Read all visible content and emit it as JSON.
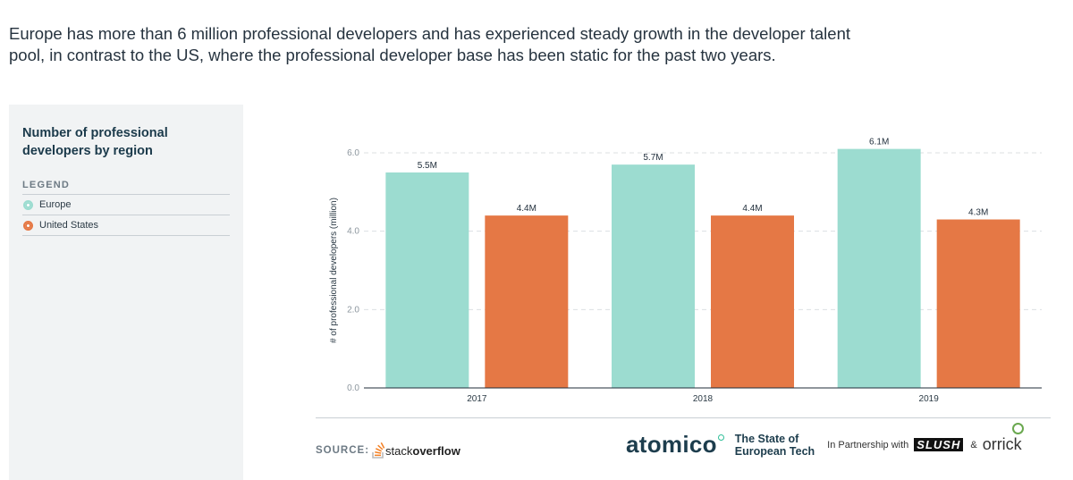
{
  "headline": "Europe has more than 6 million professional developers and has experienced steady growth in the developer talent pool, in contrast to the US, where the professional developer base has been static for the past two years.",
  "panel": {
    "title": "Number of professional developers by region",
    "legend_title": "LEGEND",
    "legend": [
      {
        "label": "Europe",
        "color": "#9cdcd0"
      },
      {
        "label": "United States",
        "color": "#e57845"
      }
    ]
  },
  "chart_data": {
    "type": "bar",
    "categories": [
      "2017",
      "2018",
      "2019"
    ],
    "series": [
      {
        "name": "Europe",
        "values": [
          5.5,
          5.7,
          6.1
        ],
        "labels": [
          "5.5M",
          "5.7M",
          "6.1M"
        ],
        "color": "#9cdcd0"
      },
      {
        "name": "United States",
        "values": [
          4.4,
          4.4,
          4.3
        ],
        "labels": [
          "4.4M",
          "4.4M",
          "4.3M"
        ],
        "color": "#e57845"
      }
    ],
    "ylabel": "# of professional developers (million)",
    "xlabel": "",
    "ylim": [
      0,
      6.0
    ],
    "yticks": [
      0.0,
      2.0,
      4.0,
      6.0
    ],
    "ytick_labels": [
      "0.0",
      "2.0",
      "4.0",
      "6.0"
    ],
    "grid": true,
    "legend_placement": "left-panel"
  },
  "footer": {
    "source_label": "SOURCE:",
    "source_name_light": "stack",
    "source_name_bold": "overflow",
    "brand": "atomico",
    "report_line1": "The State of",
    "report_line2": "European Tech",
    "partner_text": "In Partnership with",
    "partner1": "SLUSH",
    "amp": "&",
    "partner2": "orrick"
  }
}
